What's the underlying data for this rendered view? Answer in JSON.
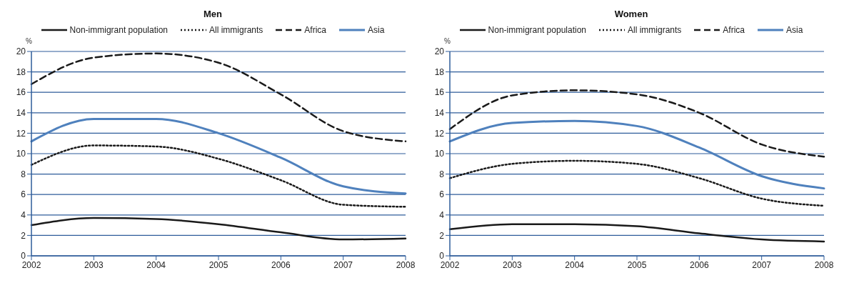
{
  "chart_data": [
    {
      "type": "line",
      "title": "Men",
      "ylabel": "%",
      "categories": [
        "2002",
        "2003",
        "2004",
        "2005",
        "2006",
        "2007",
        "2008"
      ],
      "ylim": [
        0,
        20
      ],
      "yticks": [
        0,
        2,
        4,
        6,
        8,
        10,
        12,
        14,
        16,
        18,
        20
      ],
      "grid": "y",
      "legend": "top",
      "marker": "none",
      "series": [
        {
          "name": "Non-immigrant population",
          "color": "#1a1a1a",
          "line_style": "solid",
          "values": [
            3.0,
            3.7,
            3.6,
            3.1,
            2.3,
            1.6,
            1.7
          ]
        },
        {
          "name": "All immigrants",
          "color": "#1a1a1a",
          "line_style": "dotted",
          "values": [
            8.9,
            10.8,
            10.7,
            9.5,
            7.4,
            5.0,
            4.8
          ]
        },
        {
          "name": "Africa",
          "color": "#1a1a1a",
          "line_style": "dashed",
          "values": [
            16.8,
            19.4,
            19.8,
            18.9,
            15.8,
            12.2,
            11.2
          ]
        },
        {
          "name": "Asia",
          "color": "#4f81bd",
          "line_style": "solid",
          "values": [
            11.2,
            13.4,
            13.4,
            12.0,
            9.6,
            6.8,
            6.1
          ]
        }
      ]
    },
    {
      "type": "line",
      "title": "Women",
      "ylabel": "%",
      "categories": [
        "2002",
        "2003",
        "2004",
        "2005",
        "2006",
        "2007",
        "2008"
      ],
      "ylim": [
        0,
        20
      ],
      "yticks": [
        0,
        2,
        4,
        6,
        8,
        10,
        12,
        14,
        16,
        18,
        20
      ],
      "grid": "y",
      "legend": "top",
      "marker": "none",
      "series": [
        {
          "name": "Non-immigrant population",
          "color": "#1a1a1a",
          "line_style": "solid",
          "values": [
            2.6,
            3.1,
            3.1,
            2.9,
            2.2,
            1.6,
            1.4
          ]
        },
        {
          "name": "All immigrants",
          "color": "#1a1a1a",
          "line_style": "dotted",
          "values": [
            7.6,
            9.0,
            9.3,
            9.0,
            7.6,
            5.6,
            4.9
          ]
        },
        {
          "name": "Africa",
          "color": "#1a1a1a",
          "line_style": "dashed",
          "values": [
            12.4,
            15.7,
            16.2,
            15.8,
            14.0,
            10.9,
            9.7
          ]
        },
        {
          "name": "Asia",
          "color": "#4f81bd",
          "line_style": "solid",
          "values": [
            11.2,
            13.0,
            13.2,
            12.7,
            10.6,
            7.8,
            6.6
          ]
        }
      ]
    }
  ]
}
